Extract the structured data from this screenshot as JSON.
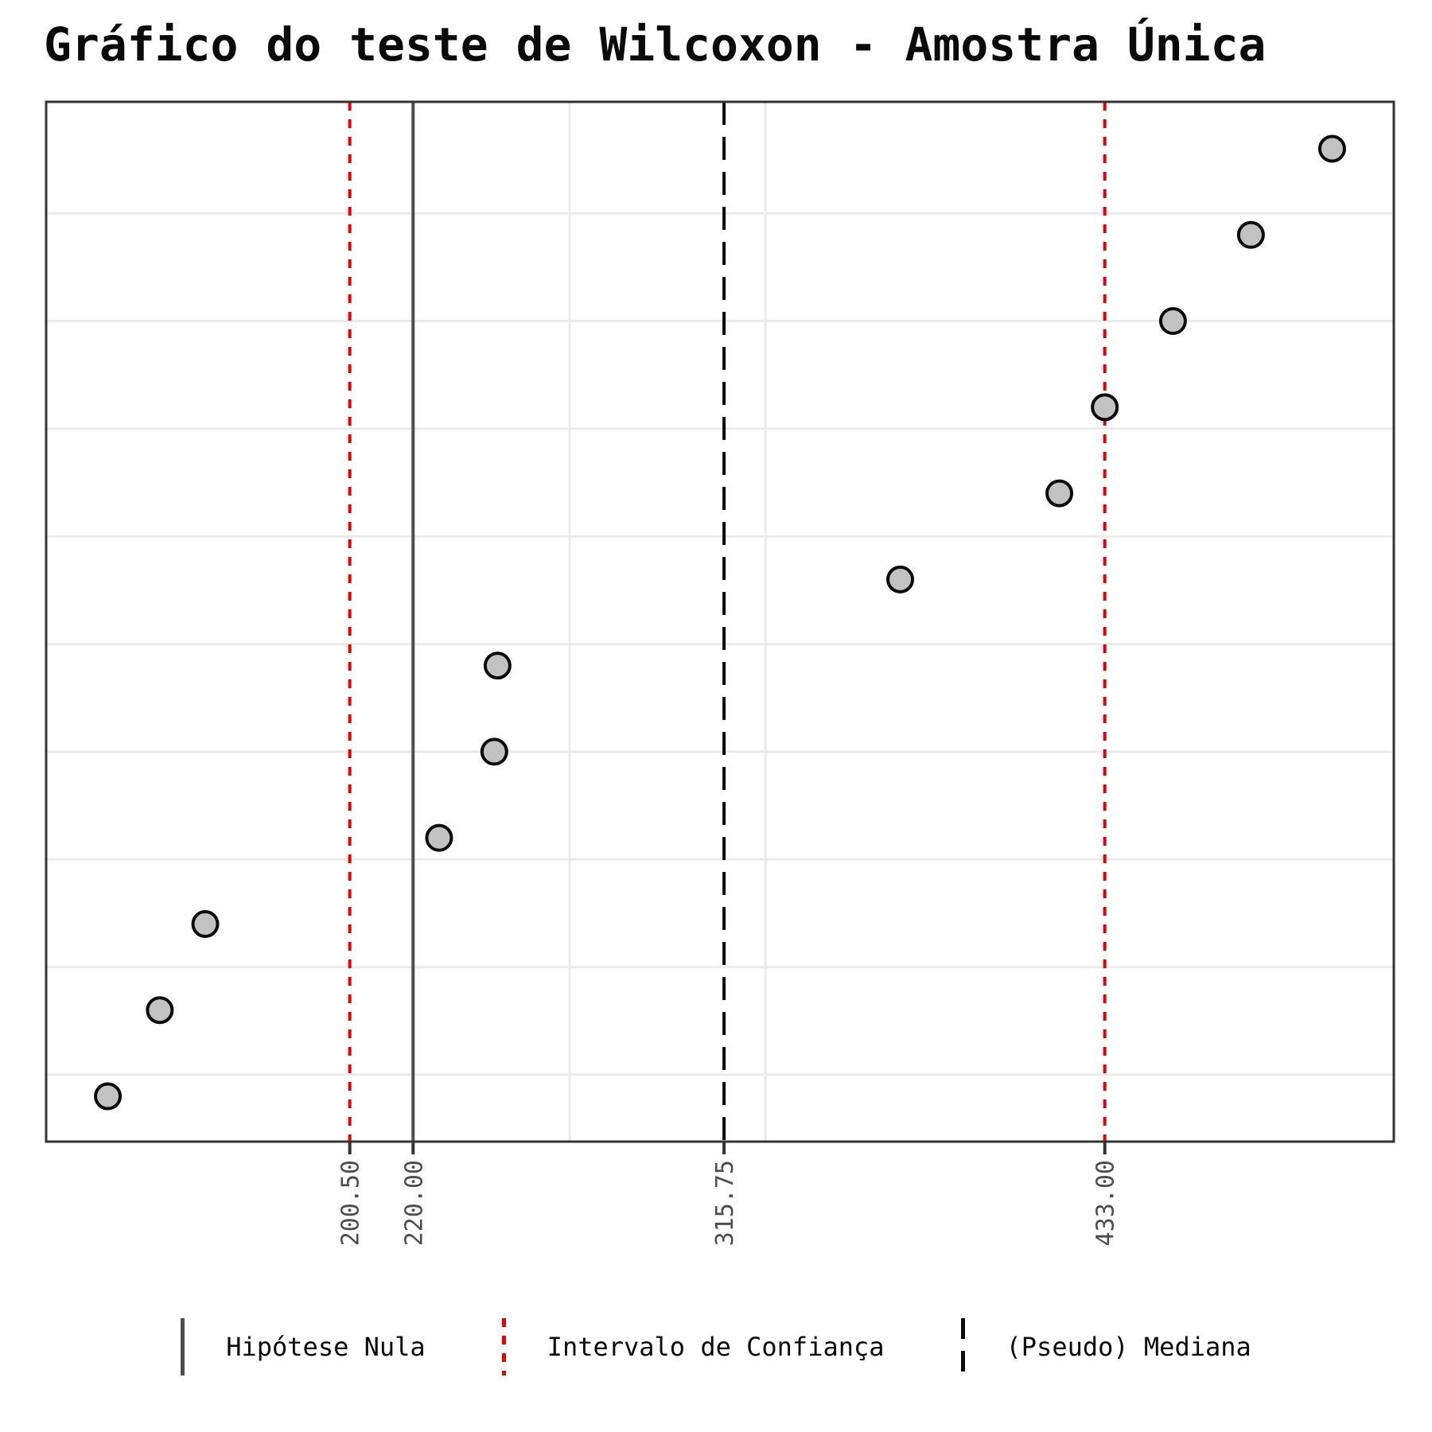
{
  "title": "Gráfico do teste de Wilcoxon - Amostra Única",
  "chart_data": {
    "type": "scatter",
    "orientation": "values on x-axis, observation rank (1-12) on y-axis, ascending toward top",
    "points": {
      "values_x": [
        126,
        142,
        156,
        228,
        245,
        246,
        370,
        419,
        433,
        454,
        478,
        503
      ],
      "rank_y": [
        1,
        2,
        3,
        4,
        5,
        6,
        7,
        8,
        9,
        10,
        11,
        12
      ]
    },
    "x_axis": {
      "tick_values": [
        200.5,
        220.0,
        315.75,
        433.0
      ],
      "tick_labels": [
        "200.50",
        "220.00",
        "315.75",
        "433.00"
      ],
      "tick_label_rotation_deg": -90,
      "range_shown": [
        107,
        522
      ]
    },
    "y_axis": {
      "tick_labels": [],
      "range_shown": [
        0.45,
        12.52
      ],
      "grid_positions": [
        1.25,
        2.5,
        3.75,
        5.0,
        6.25,
        7.5,
        8.75,
        10.0,
        11.25
      ]
    },
    "reference_lines": [
      {
        "name": "null-hypothesis",
        "value": 220.0,
        "style": "solid",
        "color": "#4d4d4d"
      },
      {
        "name": "confidence-interval-lower",
        "value": 200.5,
        "style": "dotted",
        "color": "#ed0000"
      },
      {
        "name": "confidence-interval-upper",
        "value": 433.0,
        "style": "dotted",
        "color": "#ed0000"
      },
      {
        "name": "pseudo-median",
        "value": 315.75,
        "style": "dashed",
        "color": "#0a0a0a"
      }
    ],
    "legend": [
      {
        "label": "Hipótese Nula",
        "style": "solid",
        "color": "#4d4d4d"
      },
      {
        "label": "Intervalo de Confiança",
        "style": "dotted",
        "color": "#ed0000"
      },
      {
        "label": "(Pseudo) Mediana",
        "style": "dashed",
        "color": "#0a0a0a"
      }
    ],
    "grid": true,
    "legend_position": "bottom"
  },
  "colors": {
    "background": "#ffffff",
    "panel_border": "#333333",
    "gridline": "#ebebeb",
    "point_fill": "#c2c2c2",
    "point_stroke": "#0a0a0a",
    "tick_text": "#4d4d4d",
    "ci_red": "#ed0000",
    "null_gray": "#4d4d4d",
    "median_black": "#0a0a0a"
  }
}
